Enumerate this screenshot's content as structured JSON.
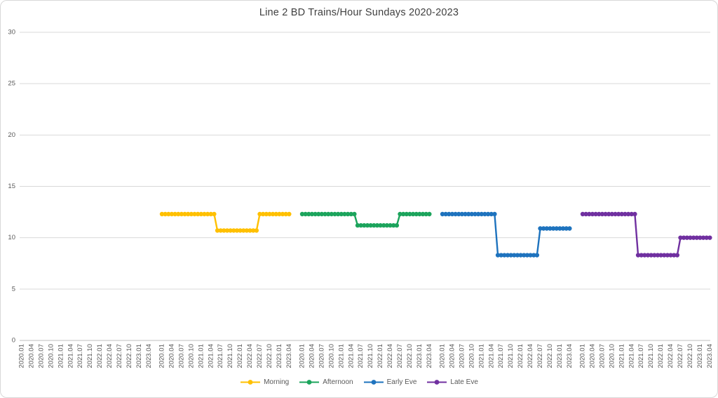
{
  "chart_data": {
    "type": "line",
    "title": "Line 2 BD Trains/Hour Sundays 2020-2023",
    "ylim": [
      0,
      30
    ],
    "yticks": [
      0,
      5,
      10,
      15,
      20,
      25,
      30
    ],
    "grid": "horizontal",
    "legend_position": "bottom",
    "x_groups": 5,
    "label_every_months": 3,
    "months": [
      "2020.01",
      "2020.02",
      "2020.03",
      "2020.04",
      "2020.05",
      "2020.06",
      "2020.07",
      "2020.08",
      "2020.09",
      "2020.10",
      "2020.11",
      "2020.12",
      "2021.01",
      "2021.02",
      "2021.03",
      "2021.04",
      "2021.05",
      "2021.06",
      "2021.07",
      "2021.08",
      "2021.09",
      "2021.10",
      "2021.11",
      "2021.12",
      "2022.01",
      "2022.02",
      "2022.03",
      "2022.04",
      "2022.05",
      "2022.06",
      "2022.07",
      "2022.08",
      "2022.09",
      "2022.10",
      "2022.11",
      "2022.12",
      "2023.01",
      "2023.02",
      "2023.03",
      "2023.04"
    ],
    "series": [
      {
        "name": "Morning",
        "color": "#FFC000",
        "group": 1,
        "values": [
          12.3,
          12.3,
          12.3,
          12.3,
          12.3,
          12.3,
          12.3,
          12.3,
          12.3,
          12.3,
          12.3,
          12.3,
          12.3,
          12.3,
          12.3,
          12.3,
          12.3,
          10.7,
          10.7,
          10.7,
          10.7,
          10.7,
          10.7,
          10.7,
          10.7,
          10.7,
          10.7,
          10.7,
          10.7,
          10.7,
          12.3,
          12.3,
          12.3,
          12.3,
          12.3,
          12.3,
          12.3,
          12.3,
          12.3,
          12.3
        ]
      },
      {
        "name": "Afternoon",
        "color": "#1CA45C",
        "group": 2,
        "values": [
          12.3,
          12.3,
          12.3,
          12.3,
          12.3,
          12.3,
          12.3,
          12.3,
          12.3,
          12.3,
          12.3,
          12.3,
          12.3,
          12.3,
          12.3,
          12.3,
          12.3,
          11.2,
          11.2,
          11.2,
          11.2,
          11.2,
          11.2,
          11.2,
          11.2,
          11.2,
          11.2,
          11.2,
          11.2,
          11.2,
          12.3,
          12.3,
          12.3,
          12.3,
          12.3,
          12.3,
          12.3,
          12.3,
          12.3,
          12.3
        ]
      },
      {
        "name": "Early Eve",
        "color": "#1E73BE",
        "group": 3,
        "values": [
          12.3,
          12.3,
          12.3,
          12.3,
          12.3,
          12.3,
          12.3,
          12.3,
          12.3,
          12.3,
          12.3,
          12.3,
          12.3,
          12.3,
          12.3,
          12.3,
          12.3,
          8.3,
          8.3,
          8.3,
          8.3,
          8.3,
          8.3,
          8.3,
          8.3,
          8.3,
          8.3,
          8.3,
          8.3,
          8.3,
          10.9,
          10.9,
          10.9,
          10.9,
          10.9,
          10.9,
          10.9,
          10.9,
          10.9,
          10.9
        ]
      },
      {
        "name": "Late Eve",
        "color": "#7030A0",
        "group": 4,
        "values": [
          12.3,
          12.3,
          12.3,
          12.3,
          12.3,
          12.3,
          12.3,
          12.3,
          12.3,
          12.3,
          12.3,
          12.3,
          12.3,
          12.3,
          12.3,
          12.3,
          12.3,
          8.3,
          8.3,
          8.3,
          8.3,
          8.3,
          8.3,
          8.3,
          8.3,
          8.3,
          8.3,
          8.3,
          8.3,
          8.3,
          10.0,
          10.0,
          10.0,
          10.0,
          10.0,
          10.0,
          10.0,
          10.0,
          10.0,
          10.0
        ]
      }
    ]
  }
}
